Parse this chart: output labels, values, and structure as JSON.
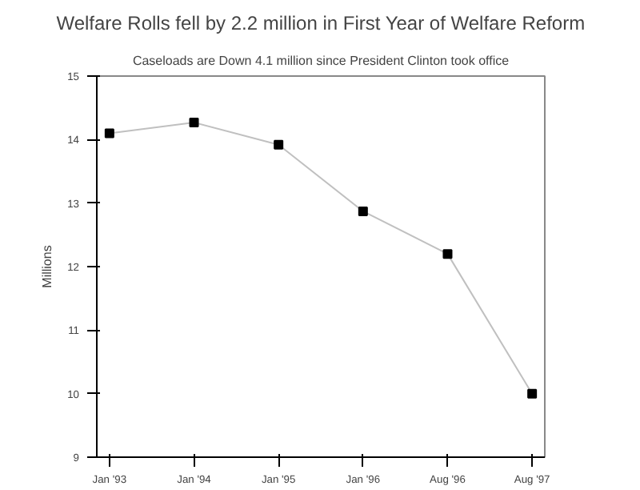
{
  "chart_data": {
    "type": "line",
    "title": "Welfare Rolls fell by 2.2 million in First Year of Welfare Reform",
    "subtitle": "Caseloads are Down 4.1 million since President Clinton took office",
    "ylabel": "Millions",
    "categories": [
      "Jan '93",
      "Jan '94",
      "Jan '95",
      "Jan '96",
      "Aug '96",
      "Aug '97"
    ],
    "series": [
      {
        "color": "#c0c0c0",
        "values": [
          14.1,
          14.27,
          13.92,
          12.87,
          12.2,
          10.0
        ]
      }
    ],
    "marker": "square",
    "ylim": [
      9,
      15
    ],
    "yticks": [
      9,
      10,
      11,
      12,
      13,
      14,
      15
    ],
    "grid": false
  }
}
